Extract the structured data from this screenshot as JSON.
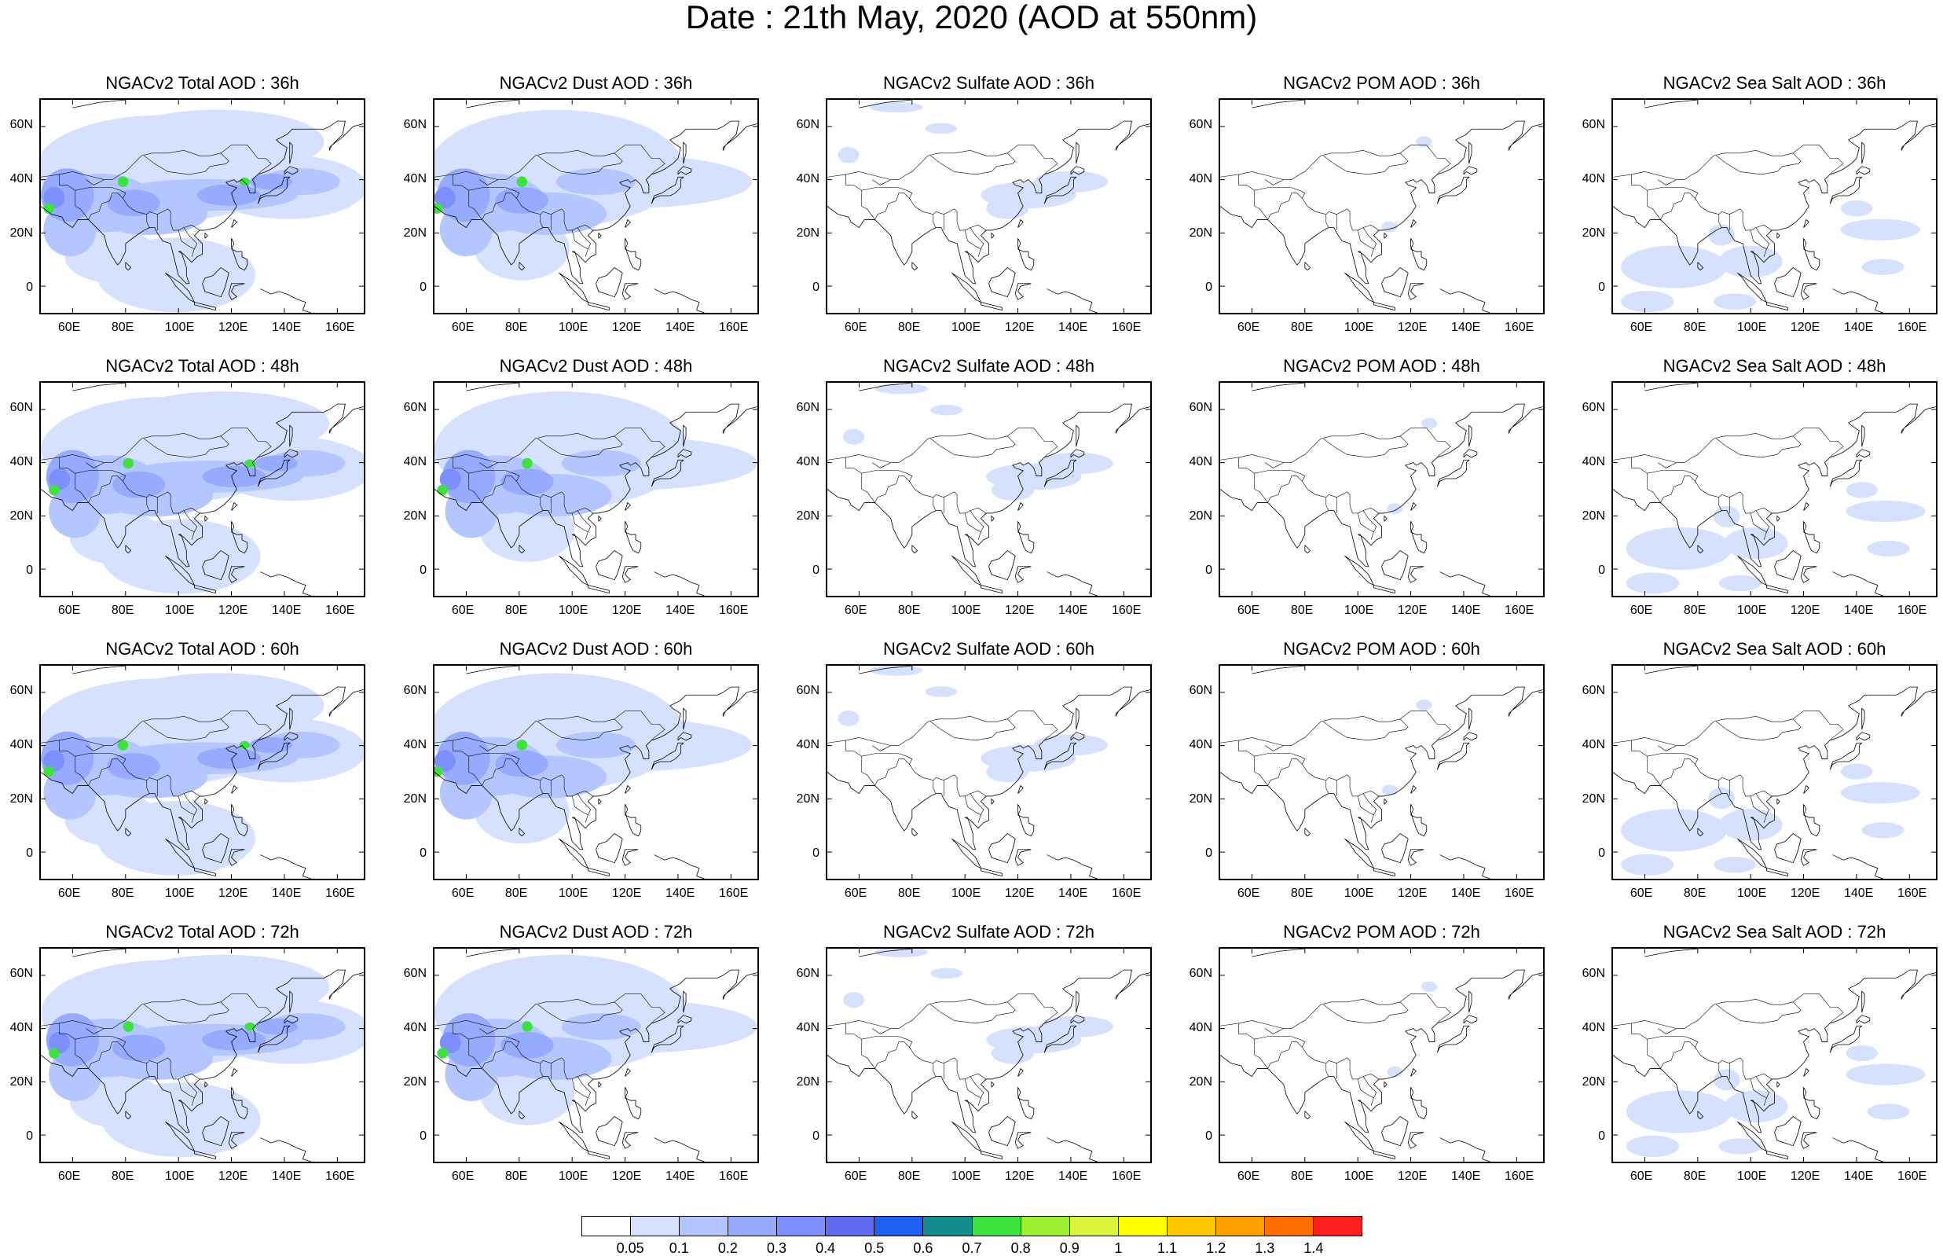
{
  "title": "Date : 21th May, 2020 (AOD at 550nm)",
  "x_ticks": [
    "60E",
    "80E",
    "100E",
    "120E",
    "140E",
    "160E"
  ],
  "y_ticks": [
    "60N",
    "40N",
    "20N",
    "0"
  ],
  "columns": [
    "total",
    "dust",
    "sulfate",
    "pom",
    "seasalt"
  ],
  "panels": [
    [
      "NGACv2 Total AOD : 36h",
      "NGACv2 Dust AOD : 36h",
      "NGACv2 Sulfate AOD : 36h",
      "NGACv2 POM AOD : 36h",
      "NGACv2 Sea Salt AOD : 36h"
    ],
    [
      "NGACv2 Total AOD : 48h",
      "NGACv2 Dust AOD : 48h",
      "NGACv2 Sulfate AOD : 48h",
      "NGACv2 POM AOD : 48h",
      "NGACv2 Sea Salt AOD : 48h"
    ],
    [
      "NGACv2 Total AOD : 60h",
      "NGACv2 Dust AOD : 60h",
      "NGACv2 Sulfate AOD : 60h",
      "NGACv2 POM AOD : 60h",
      "NGACv2 Sea Salt AOD : 60h"
    ],
    [
      "NGACv2 Total AOD : 72h",
      "NGACv2 Dust AOD : 72h",
      "NGACv2 Sulfate AOD : 72h",
      "NGACv2 POM AOD : 72h",
      "NGACv2 Sea Salt  AOD : 72h"
    ]
  ],
  "colorbar": {
    "labels": [
      "0.05",
      "0.1",
      "0.2",
      "0.3",
      "0.4",
      "0.5",
      "0.6",
      "0.7",
      "0.8",
      "0.9",
      "1",
      "1.1",
      "1.2",
      "1.3",
      "1.4"
    ],
    "colors": [
      "#ffffff",
      "#d6e0ff",
      "#b4c6ff",
      "#96abff",
      "#7d8fff",
      "#5f6cf0",
      "#1f5ef2",
      "#128c8c",
      "#3ee23e",
      "#a0f032",
      "#dcf53c",
      "#ffff00",
      "#ffc800",
      "#ffa000",
      "#ff6e00",
      "#ff1e1e"
    ]
  }
}
